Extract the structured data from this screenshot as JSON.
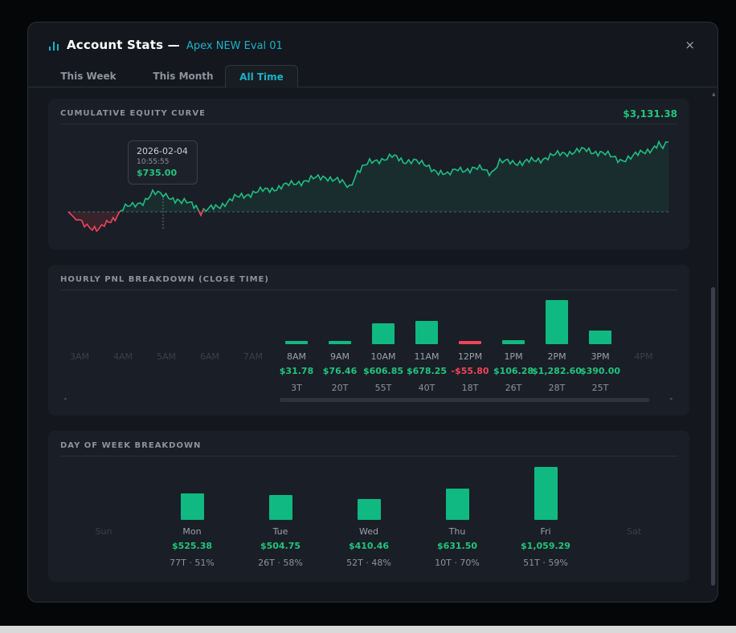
{
  "header": {
    "title": "Account Stats —",
    "account": "Apex NEW Eval 01",
    "close_symbol": "×"
  },
  "tabs": [
    {
      "label": "This Week",
      "active": false
    },
    {
      "label": "This Month",
      "active": false
    },
    {
      "label": "All Time",
      "active": true
    }
  ],
  "equity": {
    "title": "CUMULATIVE EQUITY CURVE",
    "total": "$3,131.38",
    "tooltip": {
      "date": "2026-02-04",
      "time": "10:55:55",
      "value": "$735.00"
    }
  },
  "hourly": {
    "title": "HOURLY PNL BREAKDOWN (CLOSE TIME)",
    "hours": [
      {
        "label": "3AM",
        "pnl": "",
        "trades": "",
        "value": 0,
        "empty": true
      },
      {
        "label": "4AM",
        "pnl": "",
        "trades": "",
        "value": 0,
        "empty": true
      },
      {
        "label": "5AM",
        "pnl": "",
        "trades": "",
        "value": 0,
        "empty": true
      },
      {
        "label": "6AM",
        "pnl": "",
        "trades": "",
        "value": 0,
        "empty": true
      },
      {
        "label": "7AM",
        "pnl": "",
        "trades": "",
        "value": 0,
        "empty": true
      },
      {
        "label": "8AM",
        "pnl": "$31.78",
        "trades": "3T",
        "value": 31.78,
        "empty": false
      },
      {
        "label": "9AM",
        "pnl": "$76.46",
        "trades": "20T",
        "value": 76.46,
        "empty": false
      },
      {
        "label": "10AM",
        "pnl": "$606.85",
        "trades": "55T",
        "value": 606.85,
        "empty": false
      },
      {
        "label": "11AM",
        "pnl": "$678.25",
        "trades": "40T",
        "value": 678.25,
        "empty": false
      },
      {
        "label": "12PM",
        "pnl": "-$55.80",
        "trades": "18T",
        "value": -55.8,
        "empty": false
      },
      {
        "label": "1PM",
        "pnl": "$106.28",
        "trades": "26T",
        "value": 106.28,
        "empty": false
      },
      {
        "label": "2PM",
        "pnl": "$1,282.60",
        "trades": "28T",
        "value": 1282.6,
        "empty": false
      },
      {
        "label": "3PM",
        "pnl": "$390.00",
        "trades": "25T",
        "value": 390.0,
        "empty": false
      },
      {
        "label": "4PM",
        "pnl": "",
        "trades": "",
        "value": 0,
        "empty": true
      }
    ]
  },
  "weekday": {
    "title": "DAY OF WEEK BREAKDOWN",
    "days": [
      {
        "label": "Sun",
        "pnl": "",
        "stats": "",
        "value": 0,
        "empty": true
      },
      {
        "label": "Mon",
        "pnl": "$525.38",
        "stats": "77T · 51%",
        "value": 525.38,
        "empty": false
      },
      {
        "label": "Tue",
        "pnl": "$504.75",
        "stats": "26T · 58%",
        "value": 504.75,
        "empty": false
      },
      {
        "label": "Wed",
        "pnl": "$410.46",
        "stats": "52T · 48%",
        "value": 410.46,
        "empty": false
      },
      {
        "label": "Thu",
        "pnl": "$631.50",
        "stats": "10T · 70%",
        "value": 631.5,
        "empty": false
      },
      {
        "label": "Fri",
        "pnl": "$1,059.29",
        "stats": "51T · 59%",
        "value": 1059.29,
        "empty": false
      },
      {
        "label": "Sat",
        "pnl": "",
        "stats": "",
        "value": 0,
        "empty": true
      }
    ]
  },
  "colors": {
    "positive": "#10b981",
    "negative": "#f0445a",
    "accent": "#1ab3c8"
  },
  "icons": {
    "title_icon": "bar-chart-icon",
    "close_icon": "close-icon"
  }
}
